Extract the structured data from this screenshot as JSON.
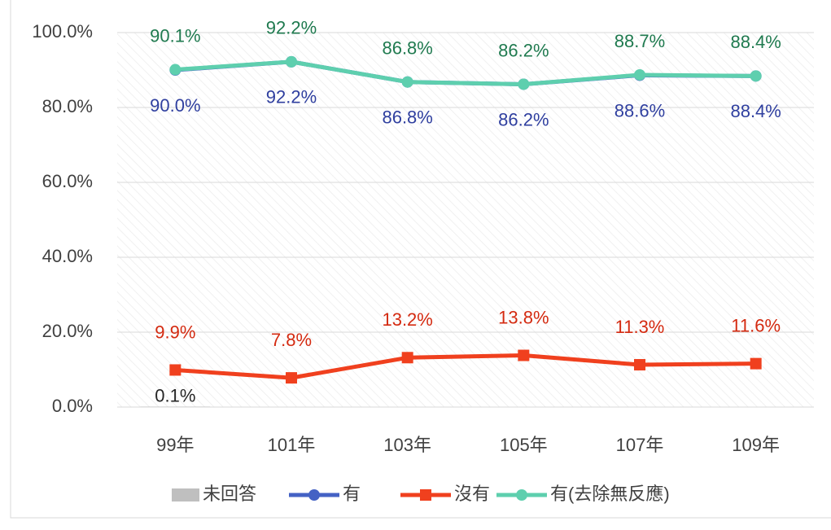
{
  "chart_data": {
    "type": "line",
    "categories": [
      "99年",
      "101年",
      "103年",
      "105年",
      "107年",
      "109年"
    ],
    "series": [
      {
        "name": "未回答",
        "type": "bar",
        "color": "#bfbfbf",
        "label_color": "#262626",
        "values": [
          0.1,
          null,
          null,
          null,
          null,
          null
        ],
        "value_labels": [
          "0.1%",
          null,
          null,
          null,
          null,
          null
        ]
      },
      {
        "name": "有",
        "color": "#4462c4",
        "label_color": "#2f3f9f",
        "values": [
          90.0,
          92.2,
          86.8,
          86.2,
          88.6,
          88.4
        ],
        "value_labels": [
          "90.0%",
          "92.2%",
          "86.8%",
          "86.2%",
          "88.6%",
          "88.4%"
        ]
      },
      {
        "name": "沒有",
        "color": "#f0401e",
        "label_color": "#d42a10",
        "values": [
          9.9,
          7.8,
          13.2,
          13.8,
          11.3,
          11.6
        ],
        "value_labels": [
          "9.9%",
          "7.8%",
          "13.2%",
          "13.8%",
          "11.3%",
          "11.6%"
        ]
      },
      {
        "name": "有(去除無反應)",
        "color": "#5ecfae",
        "label_color": "#1f7a4f",
        "values": [
          90.1,
          92.2,
          86.8,
          86.2,
          88.7,
          88.4
        ],
        "value_labels": [
          "90.1%",
          "92.2%",
          "86.8%",
          "86.2%",
          "88.7%",
          "88.4%"
        ]
      }
    ],
    "ylim": [
      0,
      100
    ],
    "yticks": [
      {
        "value": 0,
        "label": "0.0%"
      },
      {
        "value": 20,
        "label": "20.0%"
      },
      {
        "value": 40,
        "label": "40.0%"
      },
      {
        "value": 60,
        "label": "60.0%"
      },
      {
        "value": 80,
        "label": "80.0%"
      },
      {
        "value": 100,
        "label": "100.0%"
      }
    ],
    "grid": true,
    "legend": "bottom"
  }
}
